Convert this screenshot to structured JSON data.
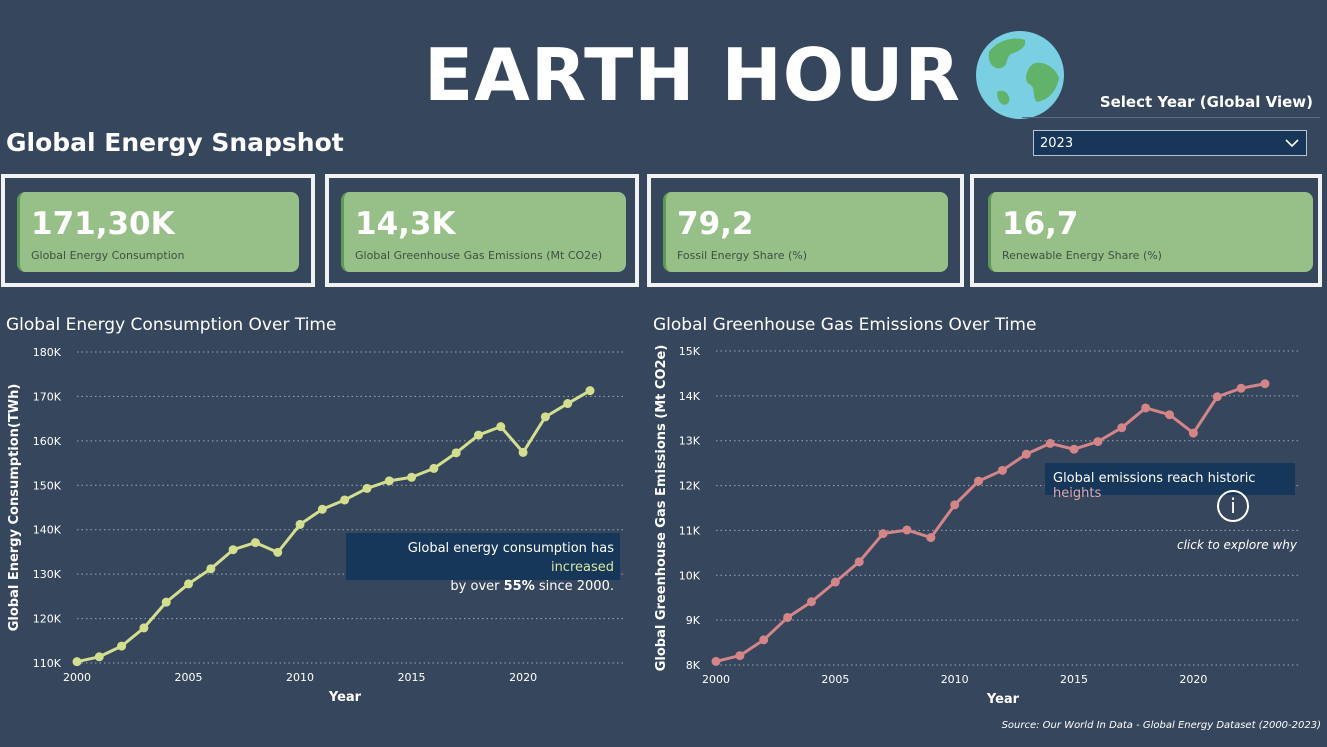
{
  "header": {
    "title": "EARTH HOUR",
    "globe_icon": "globe-icon"
  },
  "subtitle": "Global Energy Snapshot",
  "year_filter": {
    "label": "Select Year (Global View)",
    "selected": "2023"
  },
  "kpis": [
    {
      "value": "171,30K",
      "label": "Global Energy Consumption"
    },
    {
      "value": "14,3K",
      "label": "Global Greenhouse Gas Emissions (Mt CO2e)"
    },
    {
      "value": "79,2",
      "label": "Fossil Energy Share (%)"
    },
    {
      "value": "16,7",
      "label": "Renewable Energy Share (%)"
    }
  ],
  "colors": {
    "background": "#36465d",
    "kpi_card": "#97c089",
    "energy_line": "#d3df8e",
    "emissions_line": "#d48588",
    "annotation_bg": "#17375a"
  },
  "annotations": {
    "energy": {
      "part1": "Global energy consumption  has ",
      "highlight": "increased",
      "part2": "by over ",
      "bold": "55%",
      "part3": " since 2000."
    },
    "emissions": {
      "text": "Global emissions reach historic ",
      "highlight": "heights",
      "info": "i",
      "explore": "click to explore why"
    }
  },
  "source": "Source: Our World In Data - Global Energy Dataset (2000-2023)",
  "chart_data": [
    {
      "type": "line",
      "title": "Global Energy Consumption Over Time",
      "xlabel": "Year",
      "ylabel": "Global Energy Consumption(TWh)",
      "x": [
        2000,
        2001,
        2002,
        2003,
        2004,
        2005,
        2006,
        2007,
        2008,
        2009,
        2010,
        2011,
        2012,
        2013,
        2014,
        2015,
        2016,
        2017,
        2018,
        2019,
        2020,
        2021,
        2022,
        2023
      ],
      "values": [
        110300,
        111400,
        113800,
        117900,
        123700,
        127800,
        131200,
        135500,
        137100,
        134900,
        141200,
        144600,
        146700,
        149300,
        151000,
        151800,
        153800,
        157300,
        161300,
        163200,
        157400,
        165400,
        168400,
        171300
      ],
      "ylim": [
        110000,
        180000
      ],
      "yticks": [
        110000,
        120000,
        130000,
        140000,
        150000,
        160000,
        170000,
        180000
      ],
      "ytick_labels": [
        "110K",
        "120K",
        "130K",
        "140K",
        "150K",
        "160K",
        "170K",
        "180K"
      ],
      "xticks": [
        2000,
        2005,
        2010,
        2015,
        2020
      ],
      "xtick_labels": [
        "2000",
        "2005",
        "2010",
        "2015",
        "2020"
      ],
      "xlim": [
        2000,
        2023
      ],
      "grid": true
    },
    {
      "type": "line",
      "title": "Global Greenhouse Gas Emissions Over Time",
      "xlabel": "Year",
      "ylabel": "Global Greenhouse Gas Emissions (Mt CO2e)",
      "x": [
        2000,
        2001,
        2002,
        2003,
        2004,
        2005,
        2006,
        2007,
        2008,
        2009,
        2010,
        2011,
        2012,
        2013,
        2014,
        2015,
        2016,
        2017,
        2018,
        2019,
        2020,
        2021,
        2022,
        2023
      ],
      "values": [
        8080,
        8210,
        8560,
        9060,
        9410,
        9850,
        10300,
        10930,
        11010,
        10840,
        11570,
        12100,
        12340,
        12700,
        12940,
        12810,
        12980,
        13290,
        13730,
        13580,
        13170,
        13980,
        14170,
        14270
      ],
      "ylim": [
        8000,
        15000
      ],
      "yticks": [
        8000,
        9000,
        10000,
        11000,
        12000,
        13000,
        14000,
        15000
      ],
      "ytick_labels": [
        "8K",
        "9K",
        "10K",
        "11K",
        "12K",
        "13K",
        "14K",
        "15K"
      ],
      "xticks": [
        2000,
        2005,
        2010,
        2015,
        2020
      ],
      "xtick_labels": [
        "2000",
        "2005",
        "2010",
        "2015",
        "2020"
      ],
      "xlim": [
        2000,
        2023
      ],
      "grid": true
    }
  ]
}
